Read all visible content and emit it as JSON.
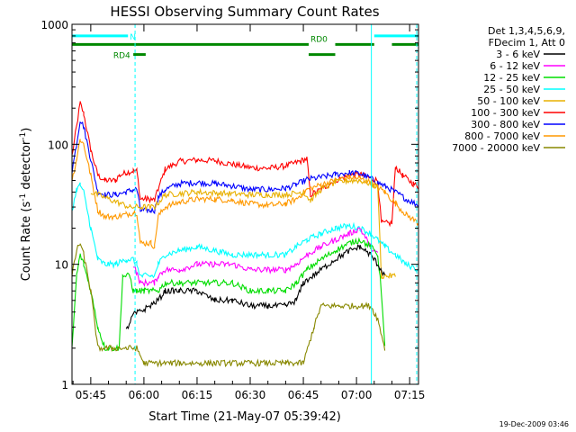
{
  "chart_data": {
    "type": "line",
    "title": "HESSI Observing Summary Count Rates",
    "xlabel": "Start Time (21-May-07 05:39:42)",
    "ylabel_main": "Count Rate (s",
    "ylabel_sup1": "-1",
    "ylabel_mid": " detector",
    "ylabel_sup2": "-1",
    "ylabel_end": ")",
    "y_scale": "log",
    "xlim_minutes": [
      339.7,
      437.5
    ],
    "ylim": [
      1,
      1000
    ],
    "x_ticks": [
      {
        "minute": 345,
        "label": "05:45"
      },
      {
        "minute": 360,
        "label": "06:00"
      },
      {
        "minute": 375,
        "label": "06:15"
      },
      {
        "minute": 390,
        "label": "06:30"
      },
      {
        "minute": 405,
        "label": "06:45"
      },
      {
        "minute": 420,
        "label": "07:00"
      },
      {
        "minute": 435,
        "label": "07:15"
      }
    ],
    "y_ticks": [
      {
        "value": 1,
        "label": "1"
      },
      {
        "value": 10,
        "label": "10"
      },
      {
        "value": 100,
        "label": "100"
      },
      {
        "value": 1000,
        "label": "1000"
      }
    ],
    "legend_header": [
      "Det 1,3,4,5,6,9,",
      "FDecim 1, Att 0"
    ],
    "legend_placement": "right, outside plot",
    "series": [
      {
        "name": "3 - 6 keV",
        "color": "#000000"
      },
      {
        "name": "6 - 12 keV",
        "color": "#ff00ff"
      },
      {
        "name": "12 - 25 keV",
        "color": "#00dd00"
      },
      {
        "name": "25 - 50 keV",
        "color": "#00ffff"
      },
      {
        "name": "50 - 100 keV",
        "color": "#e8b000"
      },
      {
        "name": "100 - 300 keV",
        "color": "#ff0000"
      },
      {
        "name": "300 - 800 keV",
        "color": "#0000ff"
      },
      {
        "name": "800 - 7000 keV",
        "color": "#ff9900"
      },
      {
        "name": "7000 - 20000 keV",
        "color": "#888800"
      }
    ],
    "curve_order": [
      "100 - 300 keV",
      "300 - 800 keV",
      "800 - 7000 keV",
      "50 - 100 keV",
      "25 - 50 keV",
      "6 - 12 keV",
      "12 - 25 keV",
      "3 - 6 keV",
      "7000 - 20000 keV"
    ],
    "curve_points": {
      "100 - 300 keV": [
        [
          339.7,
          80
        ],
        [
          341,
          140
        ],
        [
          342,
          220
        ],
        [
          343,
          180
        ],
        [
          345,
          90
        ],
        [
          347,
          55
        ],
        [
          349,
          50
        ],
        [
          352,
          50
        ],
        [
          353,
          55
        ],
        [
          355,
          58
        ],
        [
          357,
          60
        ],
        [
          358,
          60
        ],
        [
          359,
          35
        ],
        [
          361,
          35
        ],
        [
          362,
          35
        ],
        [
          363,
          34
        ],
        [
          364,
          42
        ],
        [
          366,
          62
        ],
        [
          370,
          72
        ],
        [
          375,
          74
        ],
        [
          380,
          73
        ],
        [
          385,
          68
        ],
        [
          390,
          64
        ],
        [
          395,
          63
        ],
        [
          400,
          66
        ],
        [
          404,
          72
        ],
        [
          406,
          76
        ],
        [
          407,
          38
        ],
        [
          410,
          42
        ],
        [
          414,
          50
        ],
        [
          418,
          55
        ],
        [
          421,
          56
        ],
        [
          424,
          52
        ],
        [
          426,
          50
        ],
        [
          427,
          22
        ],
        [
          430,
          22
        ],
        [
          431,
          65
        ],
        [
          433,
          55
        ],
        [
          436,
          47
        ],
        [
          437.5,
          44
        ]
      ],
      "300 - 800 keV": [
        [
          339.7,
          60
        ],
        [
          341,
          100
        ],
        [
          342,
          160
        ],
        [
          343,
          140
        ],
        [
          345,
          75
        ],
        [
          347,
          40
        ],
        [
          349,
          38
        ],
        [
          352,
          38
        ],
        [
          355,
          40
        ],
        [
          357,
          42
        ],
        [
          358,
          42
        ],
        [
          359,
          28
        ],
        [
          361,
          28
        ],
        [
          362,
          28
        ],
        [
          363,
          28
        ],
        [
          364,
          36
        ],
        [
          366,
          42
        ],
        [
          370,
          47
        ],
        [
          375,
          48
        ],
        [
          380,
          47
        ],
        [
          385,
          45
        ],
        [
          390,
          42
        ],
        [
          395,
          42
        ],
        [
          400,
          43
        ],
        [
          403,
          46
        ],
        [
          406,
          51
        ],
        [
          410,
          53
        ],
        [
          414,
          56
        ],
        [
          418,
          58
        ],
        [
          421,
          57
        ],
        [
          424,
          52
        ],
        [
          426,
          48
        ],
        [
          428,
          45
        ],
        [
          431,
          40
        ],
        [
          434,
          35
        ],
        [
          437.5,
          31
        ]
      ],
      "800 - 7000 keV": [
        [
          339.7,
          50
        ],
        [
          341,
          75
        ],
        [
          342,
          110
        ],
        [
          343,
          100
        ],
        [
          345,
          55
        ],
        [
          347,
          28
        ],
        [
          349,
          25
        ],
        [
          352,
          25
        ],
        [
          355,
          26
        ],
        [
          357,
          27
        ],
        [
          358,
          27
        ],
        [
          359,
          15
        ],
        [
          361,
          15
        ],
        [
          362,
          15
        ],
        [
          363,
          14
        ],
        [
          364,
          25
        ],
        [
          366,
          30
        ],
        [
          370,
          33
        ],
        [
          375,
          35
        ],
        [
          380,
          35
        ],
        [
          385,
          34
        ],
        [
          390,
          32
        ],
        [
          395,
          31
        ],
        [
          400,
          32
        ],
        [
          403,
          35
        ],
        [
          406,
          42
        ],
        [
          410,
          46
        ],
        [
          414,
          50
        ],
        [
          418,
          53
        ],
        [
          421,
          52
        ],
        [
          424,
          48
        ],
        [
          426,
          44
        ],
        [
          428,
          40
        ],
        [
          431,
          32
        ],
        [
          434,
          26
        ],
        [
          437.5,
          22
        ]
      ],
      "50 - 100 keV": [
        [
          345,
          40
        ],
        [
          356,
          30
        ],
        [
          363,
          30
        ],
        [
          366,
          38
        ],
        [
          375,
          40
        ],
        [
          390,
          38
        ],
        [
          400,
          38
        ],
        [
          405,
          40
        ],
        [
          407,
          34
        ],
        [
          410,
          42
        ],
        [
          414,
          48
        ],
        [
          418,
          50
        ],
        [
          421,
          50
        ],
        [
          424,
          47
        ],
        [
          426,
          44
        ],
        [
          427,
          8
        ],
        [
          431,
          8
        ]
      ],
      "25 - 50 keV": [
        [
          339.7,
          28
        ],
        [
          341,
          42
        ],
        [
          342,
          46
        ],
        [
          343,
          40
        ],
        [
          345,
          20
        ],
        [
          347,
          11
        ],
        [
          349,
          10
        ],
        [
          352,
          10
        ],
        [
          355,
          11
        ],
        [
          357,
          11
        ],
        [
          358,
          10
        ],
        [
          359,
          8
        ],
        [
          361,
          8
        ],
        [
          362,
          8
        ],
        [
          363,
          8
        ],
        [
          364,
          10
        ],
        [
          366,
          12
        ],
        [
          370,
          13
        ],
        [
          375,
          14
        ],
        [
          380,
          13
        ],
        [
          385,
          12
        ],
        [
          390,
          12
        ],
        [
          395,
          12
        ],
        [
          400,
          12
        ],
        [
          403,
          14
        ],
        [
          406,
          16
        ],
        [
          410,
          18
        ],
        [
          414,
          20
        ],
        [
          418,
          21
        ],
        [
          421,
          20
        ],
        [
          424,
          18
        ],
        [
          426,
          16
        ],
        [
          428,
          14
        ],
        [
          431,
          12
        ],
        [
          434,
          10
        ],
        [
          437.5,
          9
        ]
      ],
      "6 - 12 keV": [
        [
          357,
          10
        ],
        [
          359,
          7
        ],
        [
          361,
          7
        ],
        [
          363,
          7
        ],
        [
          364,
          8
        ],
        [
          366,
          9
        ],
        [
          370,
          9
        ],
        [
          375,
          10
        ],
        [
          380,
          10
        ],
        [
          385,
          10
        ],
        [
          390,
          9
        ],
        [
          395,
          9
        ],
        [
          400,
          9
        ],
        [
          403,
          10
        ],
        [
          406,
          12
        ],
        [
          410,
          14
        ],
        [
          414,
          16
        ],
        [
          418,
          18
        ],
        [
          421,
          20
        ],
        [
          424,
          14
        ],
        [
          426,
          12
        ]
      ],
      "12 - 25 keV": [
        [
          339.7,
          2
        ],
        [
          341,
          8
        ],
        [
          342,
          12
        ],
        [
          343,
          10
        ],
        [
          345,
          6
        ],
        [
          347,
          3
        ],
        [
          349,
          2
        ],
        [
          350,
          2
        ],
        [
          353,
          2
        ],
        [
          354,
          8
        ],
        [
          356,
          8
        ],
        [
          357,
          6
        ],
        [
          358,
          6
        ],
        [
          360,
          6
        ],
        [
          362,
          6
        ],
        [
          364,
          6
        ],
        [
          366,
          7
        ],
        [
          370,
          7
        ],
        [
          375,
          7
        ],
        [
          380,
          7
        ],
        [
          385,
          7
        ],
        [
          390,
          6
        ],
        [
          395,
          6
        ],
        [
          400,
          6
        ],
        [
          403,
          7
        ],
        [
          406,
          9
        ],
        [
          410,
          11
        ],
        [
          414,
          13
        ],
        [
          418,
          15
        ],
        [
          421,
          16
        ],
        [
          424,
          14
        ],
        [
          426,
          12
        ],
        [
          427,
          6
        ],
        [
          428,
          2
        ]
      ],
      "3 - 6 keV": [
        [
          355,
          2.8
        ],
        [
          357,
          3.8
        ],
        [
          360,
          4.2
        ],
        [
          364,
          5
        ],
        [
          366,
          6
        ],
        [
          370,
          6
        ],
        [
          375,
          6
        ],
        [
          380,
          5
        ],
        [
          385,
          5
        ],
        [
          390,
          4.5
        ],
        [
          395,
          4.5
        ],
        [
          400,
          4.5
        ],
        [
          403,
          5
        ],
        [
          405,
          7
        ],
        [
          410,
          9
        ],
        [
          414,
          11
        ],
        [
          418,
          13
        ],
        [
          421,
          14
        ],
        [
          424,
          12
        ],
        [
          426,
          10
        ],
        [
          428,
          8
        ]
      ],
      "7000 - 20000 keV": [
        [
          339.7,
          8
        ],
        [
          341,
          13
        ],
        [
          342,
          15
        ],
        [
          343,
          12
        ],
        [
          345,
          6
        ],
        [
          347,
          2
        ],
        [
          357,
          2
        ],
        [
          358,
          2
        ],
        [
          360,
          1.5
        ],
        [
          370,
          1.5
        ],
        [
          380,
          1.5
        ],
        [
          390,
          1.5
        ],
        [
          400,
          1.5
        ],
        [
          405,
          1.5
        ],
        [
          408,
          3
        ],
        [
          410,
          4.5
        ],
        [
          415,
          4.5
        ],
        [
          420,
          4.5
        ],
        [
          424,
          4.5
        ],
        [
          426,
          3.5
        ],
        [
          428,
          2
        ]
      ]
    },
    "status_bars": [
      {
        "label": "N",
        "color": "#00ffff",
        "segments": [
          [
            339.7,
            355.5
          ],
          [
            425,
            437.5
          ]
        ],
        "value": 800
      },
      {
        "label": "RD0",
        "color": "#008800",
        "segments": [
          [
            339.7,
            406.5
          ],
          [
            414,
            425
          ],
          [
            430,
            437.5
          ]
        ],
        "value": 680
      },
      {
        "label": "RD4",
        "color": "#008800",
        "segments": [
          [
            357,
            360.5
          ],
          [
            406.5,
            414
          ]
        ],
        "value": 560
      }
    ],
    "vertical_markers": [
      {
        "minute": 339.7,
        "style": "solid",
        "color": "#00ffff"
      },
      {
        "minute": 357.5,
        "style": "dashed",
        "color": "#00ffff"
      },
      {
        "minute": 424.2,
        "style": "solid",
        "color": "#00ffff"
      },
      {
        "minute": 437,
        "style": "dashed",
        "color": "#00ffff"
      }
    ],
    "grid": false
  },
  "footer": {
    "timestamp": "19-Dec-2009 03:46"
  }
}
